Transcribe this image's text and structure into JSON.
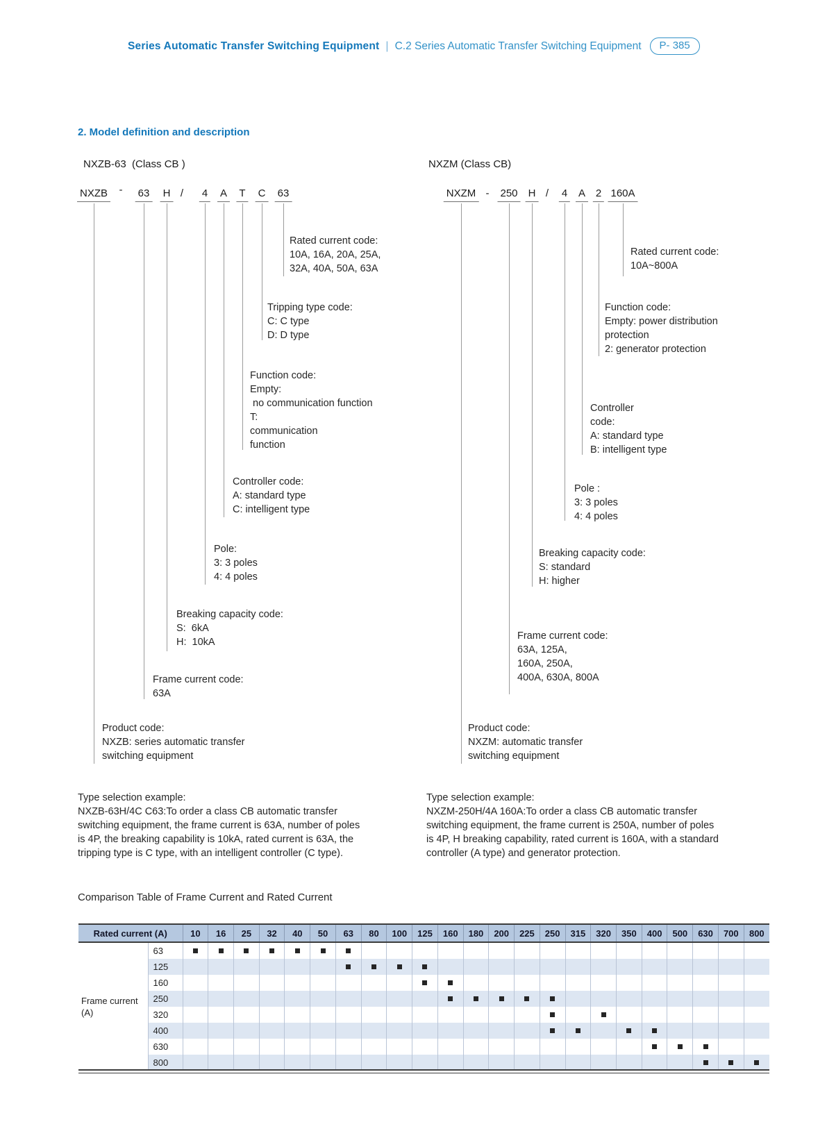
{
  "header": {
    "title_bold": "Series Automatic Transfer Switching Equipment",
    "separator": "|",
    "title_light": "C.2 Series Automatic Transfer Switching Equipment",
    "page_badge": "P- 385"
  },
  "section_title": "2. Model definition and description",
  "diagrams": [
    {
      "title": "NXZB-63  (Class CB )",
      "tokens": [
        "NXZB",
        "-",
        "63",
        "H",
        "/",
        "4",
        "A",
        "T",
        "C",
        "63"
      ],
      "annotations": [
        {
          "lines": [
            "Rated current code:",
            "10A、16A、20A、25A、",
            "32A、40A、50A、63A"
          ]
        },
        {
          "lines": [
            "Tripping type code:",
            "C: C type",
            "D: D type"
          ]
        },
        {
          "lines": [
            "Function code:",
            "Empty:",
            " no communication function",
            "T:",
            "communication",
            "function"
          ]
        },
        {
          "lines": [
            "Controller code:",
            "A: standard type",
            "C: intelligent type"
          ]
        },
        {
          "lines": [
            "Pole:",
            "3: 3 poles",
            "4: 4 poles"
          ]
        },
        {
          "lines": [
            "Breaking capacity code:",
            "S：6kA",
            "H：10kA"
          ]
        },
        {
          "lines": [
            "Frame current code:",
            "63A"
          ]
        },
        {
          "lines": [
            "Product code:",
            "NXZB: series automatic transfer",
            "switching equipment"
          ]
        }
      ],
      "example": [
        "Type selection example:",
        "NXZB-63H/4C C63:To order a class CB automatic transfer",
        "switching equipment, the frame current is 63A, number of poles",
        "is 4P, the breaking capability is 10kA, rated current is 63A, the",
        "tripping type is C type, with an intelligent controller (C type)."
      ]
    },
    {
      "title": "NXZM (Class CB)",
      "tokens": [
        "NXZM",
        "-",
        "250",
        "H",
        "/",
        "4",
        "A",
        "2",
        "160A"
      ],
      "annotations": [
        {
          "lines": [
            "Rated current code:",
            "10A~800A"
          ]
        },
        {
          "lines": [
            "Function code:",
            "Empty: power distribution",
            "protection",
            "2: generator protection"
          ]
        },
        {
          "lines": [
            "Controller",
            "code:",
            "A: standard type",
            "B: intelligent type"
          ]
        },
        {
          "lines": [
            "Pole :",
            "3: 3 poles",
            "4: 4 poles"
          ]
        },
        {
          "lines": [
            "Breaking capacity code:",
            "S: standard",
            "H: higher"
          ]
        },
        {
          "lines": [
            "Frame current code:",
            "63A、125A、",
            "160A、250A、",
            "400A、630A、800A"
          ]
        },
        {
          "lines": [
            "Product code:",
            "NXZM: automatic transfer",
            "switching equipment"
          ]
        }
      ],
      "example": [
        "Type selection example:",
        "NXZM-250H/4A 160A:To order a class CB automatic transfer",
        "switching equipment, the frame current is 250A, number of poles",
        "is 4P, H breaking capability, rated current is 160A, with a standard",
        "controller (A type) and generator protection."
      ]
    }
  ],
  "comparison_table": {
    "title": "Comparison Table of Frame Current and Rated Current",
    "corner_header": "Rated current (A)",
    "row_group_label": [
      "Frame current",
      "(A)"
    ],
    "columns": [
      "10",
      "16",
      "25",
      "32",
      "40",
      "50",
      "63",
      "80",
      "100",
      "125",
      "160",
      "180",
      "200",
      "225",
      "250",
      "315",
      "320",
      "350",
      "400",
      "500",
      "630",
      "700",
      "800"
    ],
    "rows": [
      {
        "label": "63",
        "marks": [
          "10",
          "16",
          "25",
          "32",
          "40",
          "50",
          "63"
        ]
      },
      {
        "label": "125",
        "marks": [
          "63",
          "80",
          "100",
          "125"
        ]
      },
      {
        "label": "160",
        "marks": [
          "125",
          "160"
        ]
      },
      {
        "label": "250",
        "marks": [
          "160",
          "180",
          "200",
          "225",
          "250"
        ]
      },
      {
        "label": "320",
        "marks": [
          "250",
          "320"
        ]
      },
      {
        "label": "400",
        "marks": [
          "250",
          "315",
          "350",
          "400"
        ]
      },
      {
        "label": "630",
        "marks": [
          "400",
          "500",
          "630"
        ]
      },
      {
        "label": "800",
        "marks": [
          "630",
          "700",
          "800"
        ]
      }
    ]
  },
  "colors": {
    "brand_blue": "#1478ba",
    "light_blue": "#3392c8",
    "table_header_bg": "#b5c8e0",
    "table_stripe_bg": "#dde6f2",
    "mark_color": "#252525"
  }
}
